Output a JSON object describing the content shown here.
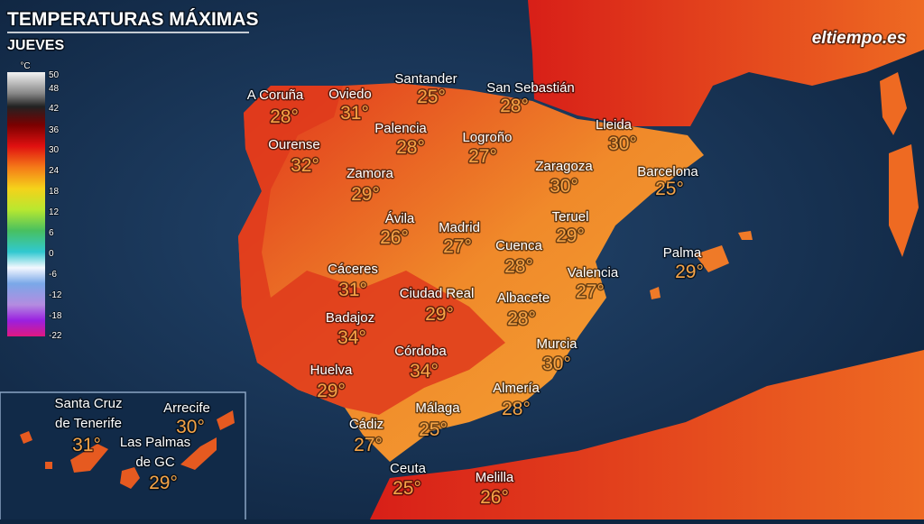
{
  "header": {
    "title": "TEMPERATURAS MÁXIMAS",
    "subtitle": "JUEVES",
    "logo": "eltiempo.es"
  },
  "legend": {
    "unit": "°C",
    "ticks": [
      "50",
      "48",
      "42",
      "36",
      "30",
      "24",
      "18",
      "12",
      "6",
      "0",
      "-6",
      "-12",
      "-18",
      "-22"
    ]
  },
  "cities": [
    {
      "name": [
        "A Coruña"
      ],
      "temp": "28°"
    },
    {
      "name": [
        "Oviedo"
      ],
      "temp": "31°"
    },
    {
      "name": [
        "Santander"
      ],
      "temp": "25°"
    },
    {
      "name": [
        "San Sebastián"
      ],
      "temp": "28°"
    },
    {
      "name": [
        "Palencia"
      ],
      "temp": "28°"
    },
    {
      "name": [
        "Logroño"
      ],
      "temp": "27°"
    },
    {
      "name": [
        "Lleida"
      ],
      "temp": "30°"
    },
    {
      "name": [
        "Ourense"
      ],
      "temp": "32°"
    },
    {
      "name": [
        "Zamora"
      ],
      "temp": "29°"
    },
    {
      "name": [
        "Zaragoza"
      ],
      "temp": "30°"
    },
    {
      "name": [
        "Barcelona"
      ],
      "temp": "25°"
    },
    {
      "name": [
        "Ávila"
      ],
      "temp": "26°"
    },
    {
      "name": [
        "Madrid"
      ],
      "temp": "27°"
    },
    {
      "name": [
        "Teruel"
      ],
      "temp": "29°"
    },
    {
      "name": [
        "Cuenca"
      ],
      "temp": "28°"
    },
    {
      "name": [
        "Palma"
      ],
      "temp": "29°"
    },
    {
      "name": [
        "Cáceres"
      ],
      "temp": "31°"
    },
    {
      "name": [
        "Ciudad Real"
      ],
      "temp": "29°"
    },
    {
      "name": [
        "Valencia"
      ],
      "temp": "27°"
    },
    {
      "name": [
        "Albacete"
      ],
      "temp": "28°"
    },
    {
      "name": [
        "Badajoz"
      ],
      "temp": "34°"
    },
    {
      "name": [
        "Córdoba"
      ],
      "temp": "34°"
    },
    {
      "name": [
        "Murcia"
      ],
      "temp": "30°"
    },
    {
      "name": [
        "Huelva"
      ],
      "temp": "29°"
    },
    {
      "name": [
        "Almería"
      ],
      "temp": "28°"
    },
    {
      "name": [
        "Málaga"
      ],
      "temp": "25°"
    },
    {
      "name": [
        "Cádiz"
      ],
      "temp": "27°"
    },
    {
      "name": [
        "Ceuta"
      ],
      "temp": "25°"
    },
    {
      "name": [
        "Melilla"
      ],
      "temp": "26°"
    },
    {
      "name": [
        "Santa Cruz",
        "de Tenerife"
      ],
      "temp": "31°"
    },
    {
      "name": [
        "Arrecife"
      ],
      "temp": "30°"
    },
    {
      "name": [
        "Las Palmas",
        "de GC"
      ],
      "temp": "29°"
    }
  ]
}
